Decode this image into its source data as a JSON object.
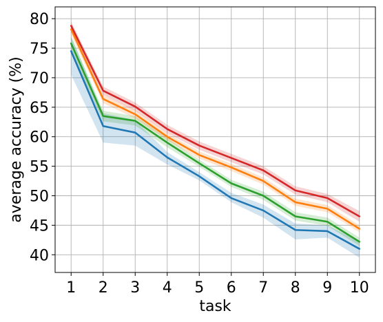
{
  "chart_data": {
    "type": "line",
    "title": "",
    "xlabel": "task",
    "ylabel": "average accuracy (%)",
    "x": [
      1,
      2,
      3,
      4,
      5,
      6,
      7,
      8,
      9,
      10
    ],
    "xlim": [
      0.5,
      10.5
    ],
    "ylim": [
      37,
      82
    ],
    "yticks": [
      40,
      45,
      50,
      55,
      60,
      65,
      70,
      75,
      80
    ],
    "grid": true,
    "legend": "none",
    "series": [
      {
        "color": "#1f77b4",
        "values": [
          74.5,
          61.8,
          60.7,
          56.5,
          53.3,
          49.6,
          47.5,
          44.2,
          44.0,
          41.0
        ],
        "lower": [
          70.5,
          59.0,
          58.5,
          55.3,
          52.6,
          48.9,
          46.3,
          42.6,
          42.9,
          39.5
        ],
        "upper": [
          77.0,
          64.0,
          62.8,
          57.4,
          54.0,
          50.5,
          48.5,
          45.3,
          45.0,
          42.3
        ]
      },
      {
        "color": "#2ca02c",
        "values": [
          75.8,
          63.5,
          62.7,
          59.0,
          55.5,
          52.1,
          50.0,
          46.5,
          45.6,
          42.2
        ],
        "lower": [
          74.3,
          62.6,
          61.9,
          58.2,
          54.9,
          51.5,
          49.3,
          45.8,
          44.9,
          41.5
        ],
        "upper": [
          77.0,
          64.4,
          63.5,
          59.8,
          56.1,
          52.7,
          50.7,
          47.2,
          46.3,
          42.9
        ]
      },
      {
        "color": "#ff7f0e",
        "values": [
          78.2,
          66.4,
          63.8,
          60.0,
          56.9,
          54.8,
          52.5,
          48.9,
          47.8,
          44.4
        ],
        "lower": [
          77.3,
          65.7,
          63.1,
          59.4,
          56.3,
          54.2,
          51.9,
          48.3,
          47.2,
          43.8
        ],
        "upper": [
          79.0,
          67.1,
          64.5,
          60.6,
          57.5,
          55.4,
          53.1,
          49.5,
          48.4,
          45.0
        ]
      },
      {
        "color": "#d62728",
        "values": [
          78.8,
          67.8,
          65.1,
          61.3,
          58.5,
          56.4,
          54.3,
          50.9,
          49.6,
          46.5
        ],
        "lower": [
          78.0,
          67.1,
          64.4,
          60.6,
          57.8,
          55.7,
          53.6,
          50.2,
          48.9,
          45.6
        ],
        "upper": [
          79.5,
          68.5,
          65.8,
          62.0,
          59.2,
          57.1,
          55.0,
          51.6,
          50.3,
          47.4
        ]
      }
    ]
  }
}
